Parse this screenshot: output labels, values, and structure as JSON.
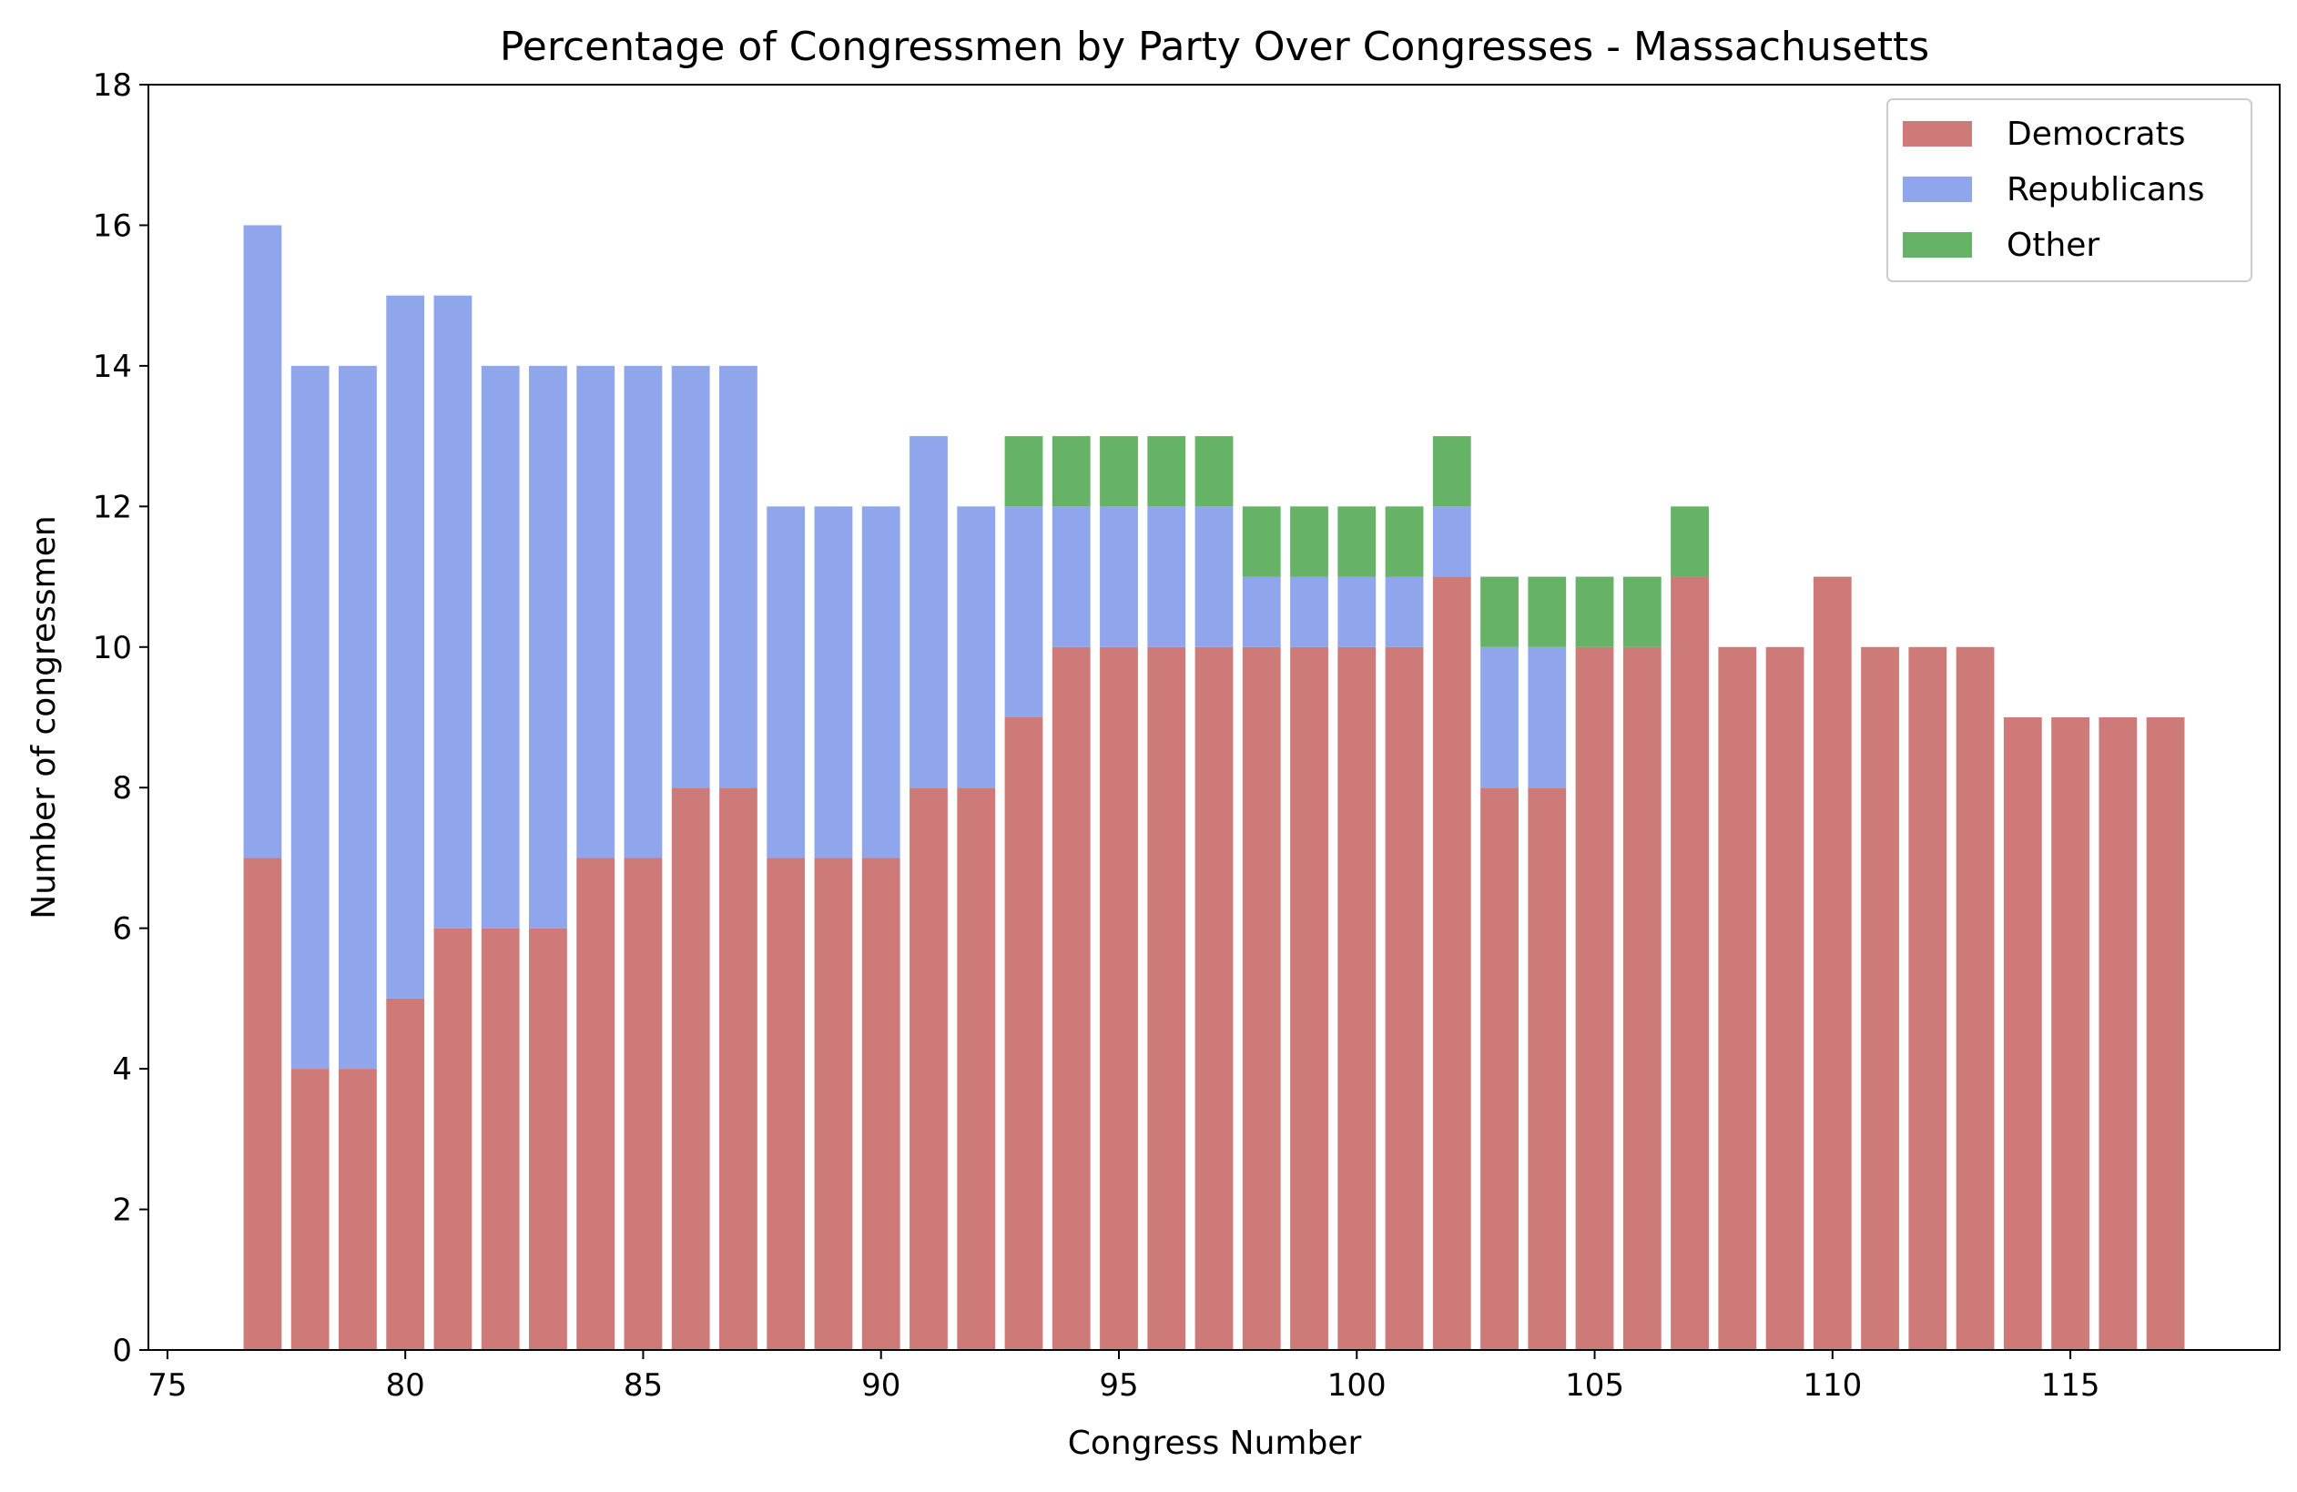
{
  "chart_data": {
    "type": "bar",
    "stacked": true,
    "title": "Percentage of Congressmen by Party Over Congresses - Massachusetts",
    "xlabel": "Congress Number",
    "ylabel": "Number of congressmen",
    "xlim": [
      74.6,
      119.4
    ],
    "ylim": [
      0,
      18
    ],
    "x_ticks": [
      75,
      80,
      85,
      90,
      95,
      100,
      105,
      110,
      115
    ],
    "y_ticks": [
      0,
      2,
      4,
      6,
      8,
      10,
      12,
      14,
      16,
      18
    ],
    "grid": false,
    "legend_position": "top-right",
    "x": [
      77,
      78,
      79,
      80,
      81,
      82,
      83,
      84,
      85,
      86,
      87,
      88,
      89,
      90,
      91,
      92,
      93,
      94,
      95,
      96,
      97,
      98,
      99,
      100,
      101,
      102,
      103,
      104,
      105,
      106,
      107,
      108,
      109,
      110,
      111,
      112,
      113,
      114,
      115,
      116,
      117
    ],
    "series": [
      {
        "name": "Democrats",
        "color": "#cd7a78",
        "values": [
          7,
          4,
          4,
          5,
          6,
          6,
          6,
          7,
          7,
          8,
          8,
          7,
          7,
          7,
          8,
          8,
          9,
          10,
          10,
          10,
          10,
          10,
          10,
          10,
          10,
          11,
          8,
          8,
          10,
          10,
          11,
          10,
          10,
          11,
          10,
          10,
          10,
          9,
          9,
          9,
          9
        ]
      },
      {
        "name": "Republicans",
        "color": "#8fa5ec",
        "values": [
          9,
          10,
          10,
          10,
          9,
          8,
          8,
          7,
          7,
          6,
          6,
          5,
          5,
          5,
          5,
          4,
          3,
          2,
          2,
          2,
          2,
          1,
          1,
          1,
          1,
          1,
          2,
          2,
          0,
          0,
          0,
          0,
          0,
          0,
          0,
          0,
          0,
          0,
          0,
          0,
          0
        ]
      },
      {
        "name": "Other",
        "color": "#66b266",
        "values": [
          0,
          0,
          0,
          0,
          0,
          0,
          0,
          0,
          0,
          0,
          0,
          0,
          0,
          0,
          0,
          0,
          1,
          1,
          1,
          1,
          1,
          1,
          1,
          1,
          1,
          1,
          1,
          1,
          1,
          1,
          1,
          0,
          0,
          0,
          0,
          0,
          0,
          0,
          0,
          0,
          0
        ]
      }
    ]
  }
}
